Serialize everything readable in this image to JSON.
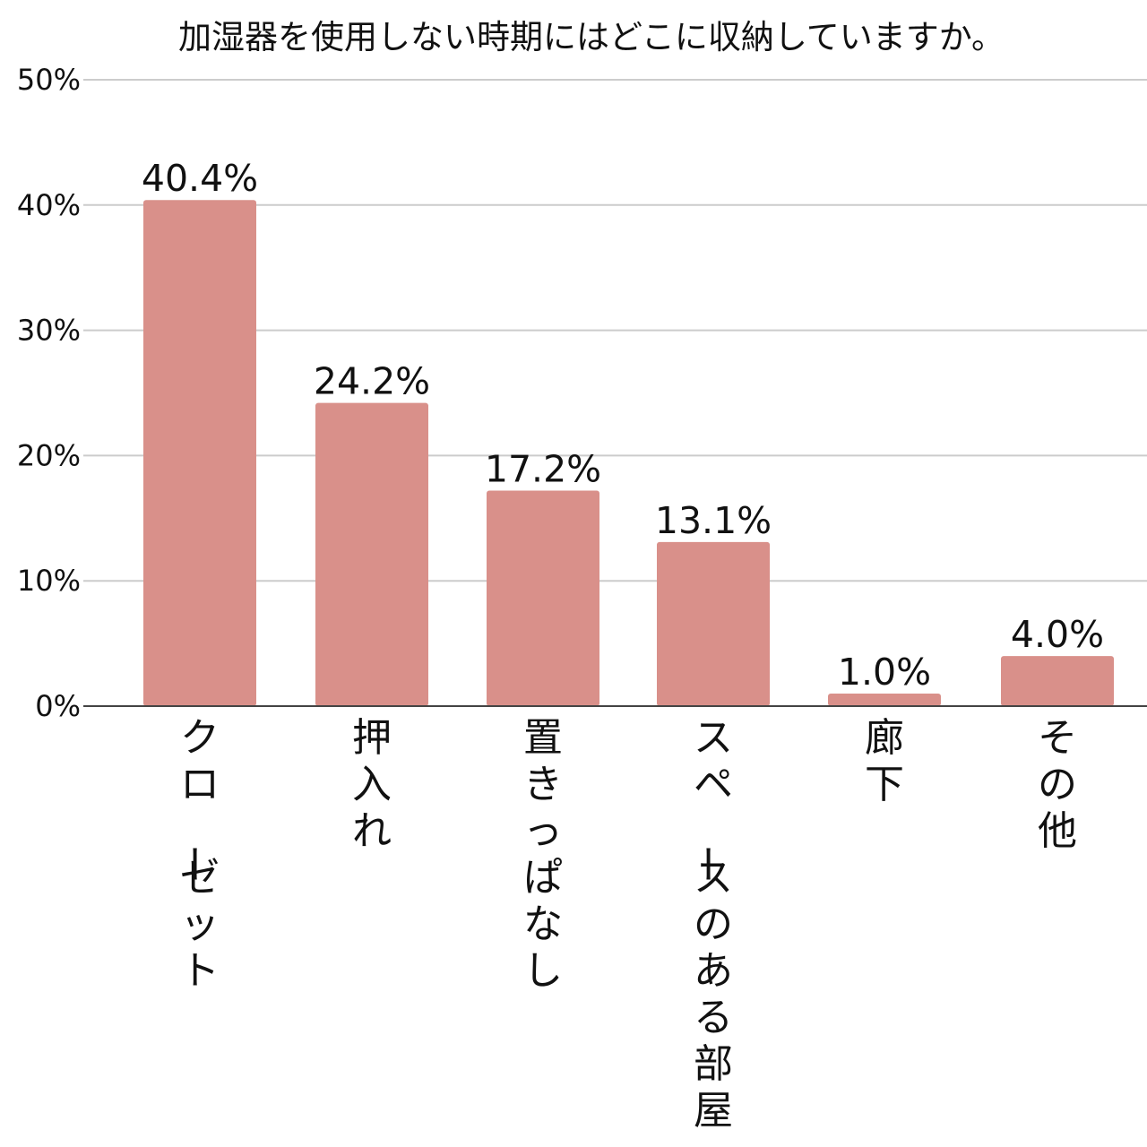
{
  "colors": {
    "bar": "#d9908a",
    "grid": "#cccccc",
    "baseline": "#444444",
    "text": "#111111"
  },
  "chart_data": {
    "type": "bar",
    "title": "加湿器を使用しない時期にはどこに収納していますか。",
    "categories": [
      "クローゼット",
      "押入れ",
      "置きっぱなし",
      "スペースのある部屋",
      "廊下",
      "その他"
    ],
    "values": [
      40.4,
      24.2,
      17.2,
      13.1,
      1.0,
      4.0
    ],
    "value_labels": [
      "40.4%",
      "24.2%",
      "17.2%",
      "13.1%",
      "1.0%",
      "4.0%"
    ],
    "y_ticks": [
      0,
      10,
      20,
      30,
      40,
      50
    ],
    "y_tick_labels": [
      "0%",
      "10%",
      "20%",
      "30%",
      "40%",
      "50%"
    ],
    "ylim": [
      0,
      50
    ],
    "xlabel": "",
    "ylabel": "",
    "grid": true,
    "legend": "none"
  }
}
